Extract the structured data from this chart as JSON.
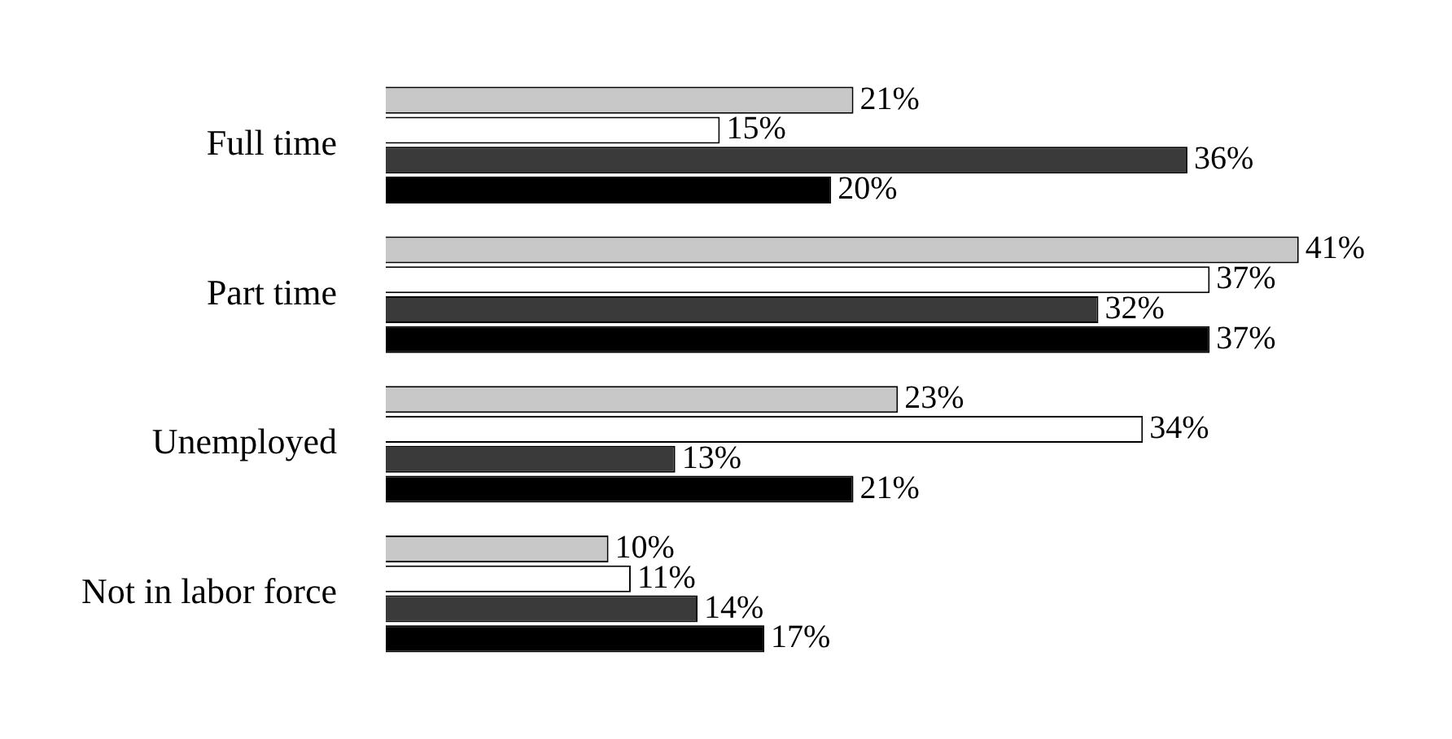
{
  "chart_data": {
    "type": "bar",
    "orientation": "horizontal",
    "tick_labels": "y",
    "legend": false,
    "grid": false,
    "categories": [
      "Full time",
      "Part time",
      "Unemployed",
      "Not in labor force"
    ],
    "series": [
      {
        "color": "#c8c8c8",
        "values": [
          21,
          41,
          23,
          10
        ],
        "value_labels": [
          "21%",
          "41%",
          "23%",
          "10%"
        ]
      },
      {
        "color": "#ffffff",
        "values": [
          15,
          37,
          34,
          11
        ],
        "value_labels": [
          "15%",
          "37%",
          "34%",
          "11%"
        ]
      },
      {
        "color": "#3a3a3a",
        "values": [
          36,
          32,
          13,
          14
        ],
        "value_labels": [
          "36%",
          "32%",
          "13%",
          "14%"
        ]
      },
      {
        "color": "#000000",
        "values": [
          20,
          37,
          21,
          17
        ],
        "value_labels": [
          "20%",
          "37%",
          "21%",
          "17%"
        ]
      }
    ]
  }
}
